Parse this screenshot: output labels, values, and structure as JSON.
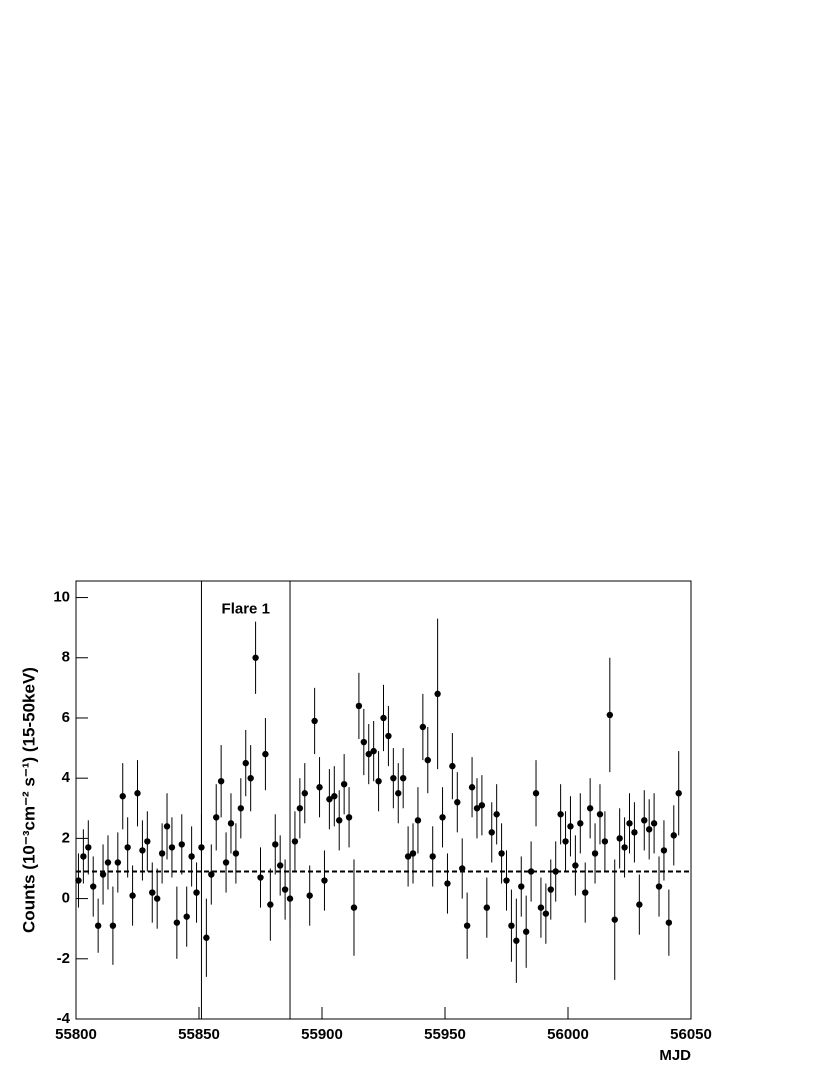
{
  "chart_data": {
    "type": "scatter",
    "x_label": "MJD",
    "y_label": "Counts (10⁻³cm⁻² s⁻¹) (15-50keV)",
    "annotation": "Flare 1",
    "flare_bounds": [
      55851,
      55887
    ],
    "baseline": 0.9,
    "color": "#000000",
    "xlim": [
      55800,
      56050
    ],
    "xticks": [
      55800,
      55850,
      55900,
      55950,
      56000,
      56050
    ],
    "ylim": [
      -4,
      10.55
    ],
    "yticks": [
      -4,
      -2,
      0,
      2,
      4,
      6,
      8,
      10
    ],
    "x": [
      55801,
      55803,
      55805,
      55807,
      55809,
      55811,
      55813,
      55815,
      55817,
      55819,
      55821,
      55823,
      55825,
      55827,
      55829,
      55831,
      55833,
      55835,
      55837,
      55839,
      55841,
      55843,
      55845,
      55847,
      55849,
      55851,
      55853,
      55855,
      55857,
      55859,
      55861,
      55863,
      55865,
      55867,
      55869,
      55871,
      55873,
      55875,
      55877,
      55879,
      55881,
      55883,
      55885,
      55887,
      55889,
      55891,
      55893,
      55895,
      55897,
      55899,
      55901,
      55903,
      55905,
      55907,
      55909,
      55911,
      55913,
      55915,
      55917,
      55919,
      55921,
      55923,
      55925,
      55927,
      55929,
      55931,
      55933,
      55935,
      55937,
      55939,
      55941,
      55943,
      55945,
      55947,
      55949,
      55951,
      55953,
      55955,
      55957,
      55959,
      55961,
      55963,
      55965,
      55967,
      55969,
      55971,
      55973,
      55975,
      55977,
      55979,
      55981,
      55983,
      55985,
      55987,
      55989,
      55991,
      55993,
      55995,
      55997,
      55999,
      56001,
      56003,
      56005,
      56007,
      56009,
      56011,
      56013,
      56015,
      56017,
      56019,
      56021,
      56023,
      56025,
      56027,
      56029,
      56031,
      56033,
      56035,
      56037,
      56039,
      56041,
      56043,
      56045
    ],
    "values": [
      0.6,
      1.4,
      1.7,
      0.4,
      -0.9,
      0.8,
      1.2,
      -0.9,
      1.2,
      3.4,
      1.7,
      0.1,
      3.5,
      1.6,
      1.9,
      0.2,
      0.0,
      1.5,
      2.4,
      1.7,
      -0.8,
      1.8,
      -0.6,
      1.4,
      0.2,
      1.7,
      -1.3,
      0.8,
      2.7,
      3.9,
      1.2,
      2.5,
      1.5,
      3.0,
      4.5,
      4.0,
      8.0,
      0.7,
      4.8,
      -0.2,
      1.8,
      1.1,
      0.3,
      0.0,
      1.9,
      3.0,
      3.5,
      0.1,
      5.9,
      3.7,
      0.6,
      3.3,
      3.4,
      2.6,
      3.8,
      2.7,
      -0.3,
      6.4,
      5.2,
      4.8,
      4.9,
      3.9,
      6.0,
      5.4,
      4.0,
      3.5,
      4.0,
      1.4,
      1.5,
      2.6,
      5.7,
      4.6,
      1.4,
      6.8,
      2.7,
      0.5,
      4.4,
      3.2,
      1.0,
      -0.9,
      3.7,
      3.0,
      3.1,
      -0.3,
      2.2,
      2.8,
      1.5,
      0.6,
      -0.9,
      -1.4,
      0.4,
      -1.1,
      0.9,
      3.5,
      -0.3,
      -0.5,
      0.3,
      0.9,
      2.8,
      1.9,
      2.4,
      1.1,
      2.5,
      0.2,
      3.0,
      1.5,
      2.8,
      1.9,
      6.1,
      -0.7,
      2.0,
      1.7,
      2.5,
      2.2,
      -0.2,
      2.6,
      2.3,
      2.5,
      0.4,
      1.6,
      -0.8,
      2.1,
      3.5
    ],
    "errors": [
      0.9,
      0.9,
      0.9,
      1.0,
      0.9,
      1.0,
      0.9,
      1.3,
      1.0,
      1.1,
      1.0,
      1.0,
      1.1,
      1.0,
      1.0,
      1.0,
      1.0,
      1.0,
      1.1,
      1.0,
      1.2,
      1.0,
      1.0,
      1.0,
      1.0,
      1.1,
      1.3,
      1.0,
      1.1,
      1.2,
      1.0,
      1.0,
      1.0,
      1.0,
      1.1,
      1.1,
      1.2,
      1.0,
      1.2,
      1.2,
      1.0,
      1.0,
      1.0,
      1.0,
      1.0,
      1.0,
      1.0,
      1.0,
      1.1,
      1.0,
      1.0,
      1.0,
      1.0,
      1.0,
      1.0,
      1.0,
      1.6,
      1.1,
      1.1,
      1.0,
      1.0,
      1.0,
      1.1,
      1.0,
      1.0,
      1.0,
      1.0,
      1.0,
      1.0,
      1.1,
      1.1,
      1.1,
      1.0,
      2.5,
      1.0,
      1.0,
      1.1,
      1.0,
      1.0,
      1.1,
      1.0,
      1.0,
      1.0,
      1.0,
      1.0,
      1.0,
      1.0,
      1.0,
      1.2,
      1.4,
      1.0,
      1.2,
      1.0,
      1.1,
      1.0,
      1.0,
      1.0,
      1.0,
      1.0,
      1.0,
      1.0,
      1.0,
      1.0,
      1.0,
      1.0,
      1.0,
      1.0,
      1.0,
      1.9,
      2.0,
      1.0,
      1.0,
      1.0,
      1.0,
      1.0,
      1.0,
      1.0,
      1.0,
      1.0,
      1.0,
      1.1,
      1.0,
      1.4
    ]
  }
}
